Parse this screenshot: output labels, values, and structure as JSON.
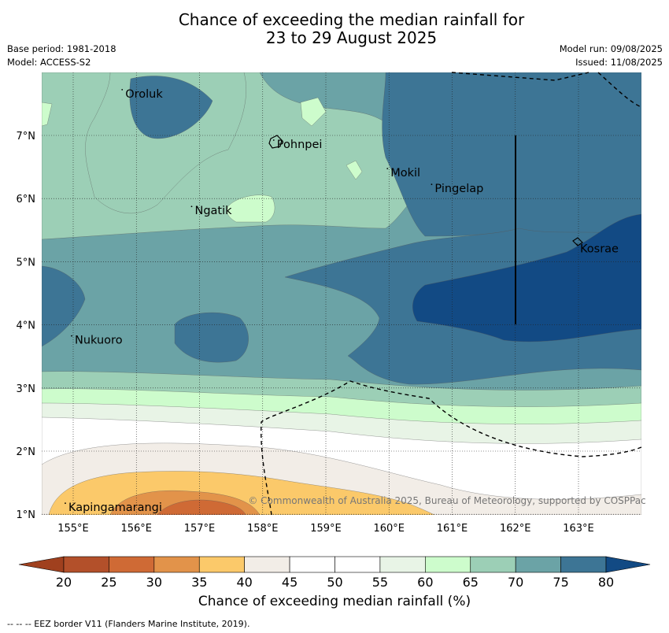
{
  "title_line1": "Chance of exceeding the median rainfall for",
  "title_line2": "23 to 29 August 2025",
  "base_period": "Base period: 1981-2018",
  "model": "Model: ACCESS-S2",
  "model_run": "Model run: 09/08/2025",
  "issued": "Issued: 11/08/2025",
  "copyright": "© Commonwealth of Australia 2025, Bureau of Meteorology, supported by COSPPac",
  "colorbar_title": "Chance of exceeding median rainfall (%)",
  "footnote": "--  --  -- EEZ border V11 (Flanders Marine Institute, 2019).",
  "colors": {
    "c20": "#b3502a",
    "c25": "#cf6a35",
    "c30": "#e2934a",
    "c35": "#fbc96a",
    "c40": "#f2ede7",
    "c45": "#ffffff",
    "c50": "#ffffff",
    "c55": "#e8f4e6",
    "c60": "#cdfccc",
    "c65": "#9ccfb6",
    "c70": "#6ba3a6",
    "c75": "#3d7595",
    "c80": "#124a84",
    "low_ext": "#a0401e"
  },
  "lon_ticks": [
    "155°E",
    "156°E",
    "157°E",
    "158°E",
    "159°E",
    "160°E",
    "161°E",
    "162°E",
    "163°E"
  ],
  "lat_ticks": [
    "7°N",
    "6°N",
    "5°N",
    "4°N",
    "3°N",
    "2°N",
    "1°N"
  ],
  "colorbar_ticks": [
    "20",
    "25",
    "30",
    "35",
    "40",
    "45",
    "50",
    "55",
    "60",
    "65",
    "70",
    "75",
    "80"
  ],
  "places": [
    {
      "name": "Oroluk",
      "lon": 155.8,
      "lat": 7.65
    },
    {
      "name": "Pohnpei",
      "lon": 158.2,
      "lat": 6.85
    },
    {
      "name": "Mokil",
      "lon": 160.0,
      "lat": 6.4
    },
    {
      "name": "Pingelap",
      "lon": 160.7,
      "lat": 6.15
    },
    {
      "name": "Ngatik",
      "lon": 156.9,
      "lat": 5.8
    },
    {
      "name": "Kosrae",
      "lon": 163.0,
      "lat": 5.2
    },
    {
      "name": "Nukuoro",
      "lon": 155.0,
      "lat": 3.75
    },
    {
      "name": "Kapingamarangi",
      "lon": 154.9,
      "lat": 1.1
    }
  ]
}
